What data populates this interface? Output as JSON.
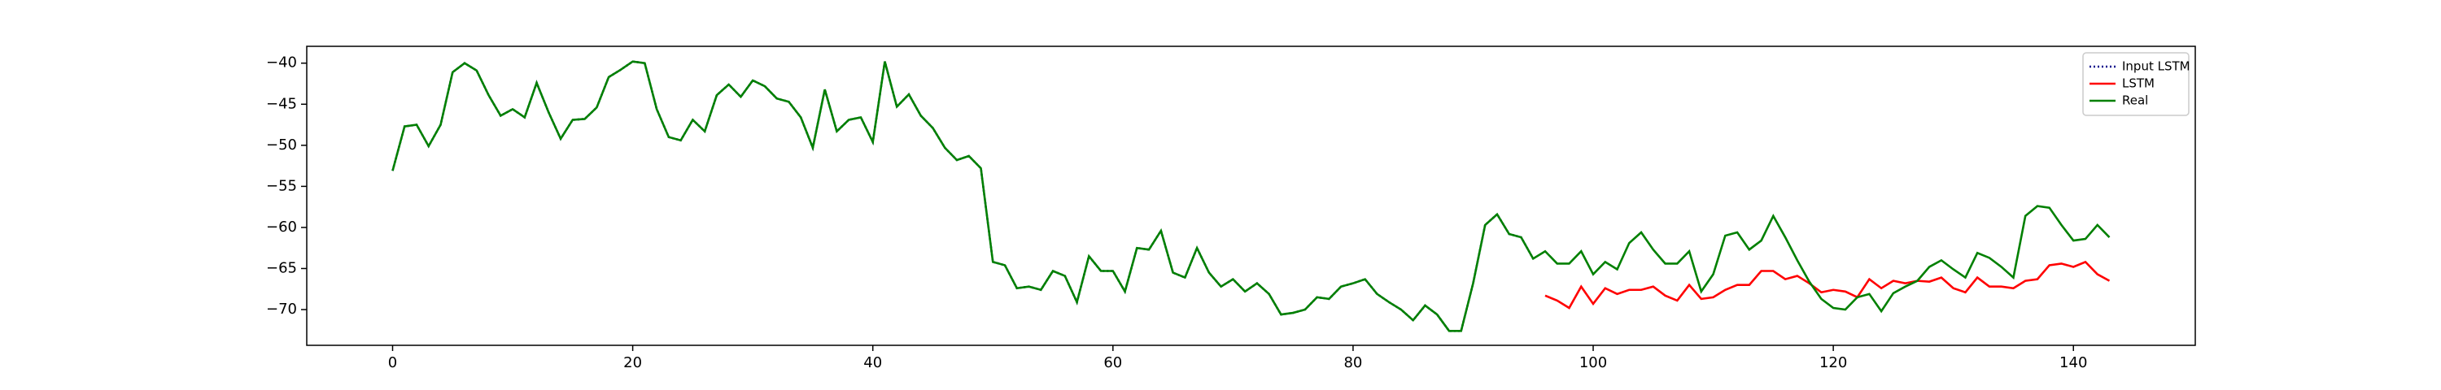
{
  "chart_data": {
    "type": "line",
    "legend": "upper right",
    "xlim": [
      -7.15,
      150.15
    ],
    "ylim": [
      -74.35,
      -37.95
    ],
    "xticks": [
      0,
      20,
      40,
      60,
      80,
      100,
      120,
      140
    ],
    "yticks": [
      {
        "value": -70,
        "label": "−70"
      },
      {
        "value": -65,
        "label": "−65"
      },
      {
        "value": -60,
        "label": "−60"
      },
      {
        "value": -55,
        "label": "−55"
      },
      {
        "value": -50,
        "label": "−50"
      },
      {
        "value": -45,
        "label": "−45"
      },
      {
        "value": -40,
        "label": "−40"
      }
    ],
    "series": [
      {
        "name": "Input LSTM",
        "color": "#00008b",
        "dash": "dotted",
        "x": [
          0,
          1,
          2,
          3,
          4,
          5,
          6,
          7,
          8,
          9,
          10,
          11,
          12,
          13,
          14,
          15,
          16,
          17,
          18,
          19,
          20,
          21,
          22,
          23,
          24,
          25,
          26,
          27,
          28,
          29,
          30,
          31,
          32,
          33,
          34,
          35,
          36,
          37,
          38,
          39,
          40,
          41,
          42,
          43,
          44,
          45,
          46,
          47,
          48,
          49,
          50,
          51,
          52,
          53,
          54,
          55,
          56,
          57,
          58,
          59,
          60,
          61,
          62,
          63,
          64,
          65,
          66,
          67,
          68,
          69,
          70,
          71,
          72,
          73,
          74,
          75,
          76,
          77,
          78,
          79,
          80,
          81,
          82,
          83,
          84,
          85,
          86,
          87,
          88,
          89,
          90,
          91,
          92,
          93,
          94,
          95
        ],
        "values": [
          -53.1,
          -47.7,
          -47.5,
          -50.1,
          -47.5,
          -41.1,
          -40,
          -40.9,
          -43.9,
          -46.4,
          -45.6,
          -46.6,
          -42.4,
          -46,
          -49.2,
          -46.9,
          -46.8,
          -45.4,
          -41.7,
          -40.8,
          -39.8,
          -40,
          -45.6,
          -49,
          -49.4,
          -46.9,
          -48.3,
          -43.9,
          -42.6,
          -44.1,
          -42.1,
          -42.8,
          -44.3,
          -44.7,
          -46.6,
          -50.3,
          -43.2,
          -48.3,
          -46.9,
          -46.6,
          -49.6,
          -39.8,
          -45.3,
          -43.8,
          -46.4,
          -47.9,
          -50.3,
          -51.8,
          -51.3,
          -52.8,
          -64.2,
          -64.6,
          -67.4,
          -67.2,
          -67.6,
          -65.3,
          -65.9,
          -69.1,
          -63.5,
          -65.3,
          -65.3,
          -67.8,
          -62.5,
          -62.7,
          -60.4,
          -65.5,
          -66.1,
          -62.5,
          -65.5,
          -67.2,
          -66.3,
          -67.8,
          -66.8,
          -68.1,
          -70.6,
          -70.4,
          -70,
          -68.5,
          -68.7,
          -67.2,
          -66.8,
          -66.3,
          -68.1,
          -69.1,
          -70,
          -71.3,
          -69.5,
          -70.6,
          -72.6,
          -72.6,
          -66.8,
          -59.7,
          -58.4,
          -60.8,
          -61.2,
          -63.8
        ]
      },
      {
        "name": "LSTM",
        "color": "#ff0000",
        "dash": "solid",
        "x": [
          96,
          97,
          98,
          99,
          100,
          101,
          102,
          103,
          104,
          105,
          106,
          107,
          108,
          109,
          110,
          111,
          112,
          113,
          114,
          115,
          116,
          117,
          118,
          119,
          120,
          121,
          122,
          123,
          124,
          125,
          126,
          127,
          128,
          129,
          130,
          131,
          132,
          133,
          134,
          135,
          136,
          137,
          138,
          139,
          140,
          141,
          142,
          143
        ],
        "values": [
          -68.3,
          -68.9,
          -69.8,
          -67.2,
          -69.3,
          -67.4,
          -68.1,
          -67.6,
          -67.6,
          -67.2,
          -68.3,
          -68.9,
          -67,
          -68.7,
          -68.5,
          -67.6,
          -67,
          -67,
          -65.3,
          -65.3,
          -66.3,
          -65.9,
          -66.8,
          -67.9,
          -67.6,
          -67.8,
          -68.5,
          -66.3,
          -67.4,
          -66.5,
          -66.8,
          -66.5,
          -66.6,
          -66.1,
          -67.4,
          -67.9,
          -66.1,
          -67.2,
          -67.2,
          -67.4,
          -66.5,
          -66.3,
          -64.6,
          -64.4,
          -64.8,
          -64.2,
          -65.7,
          -66.5
        ]
      },
      {
        "name": "Real",
        "color": "#008000",
        "dash": "solid",
        "x": [
          0,
          1,
          2,
          3,
          4,
          5,
          6,
          7,
          8,
          9,
          10,
          11,
          12,
          13,
          14,
          15,
          16,
          17,
          18,
          19,
          20,
          21,
          22,
          23,
          24,
          25,
          26,
          27,
          28,
          29,
          30,
          31,
          32,
          33,
          34,
          35,
          36,
          37,
          38,
          39,
          40,
          41,
          42,
          43,
          44,
          45,
          46,
          47,
          48,
          49,
          50,
          51,
          52,
          53,
          54,
          55,
          56,
          57,
          58,
          59,
          60,
          61,
          62,
          63,
          64,
          65,
          66,
          67,
          68,
          69,
          70,
          71,
          72,
          73,
          74,
          75,
          76,
          77,
          78,
          79,
          80,
          81,
          82,
          83,
          84,
          85,
          86,
          87,
          88,
          89,
          90,
          91,
          92,
          93,
          94,
          95,
          96,
          97,
          98,
          99,
          100,
          101,
          102,
          103,
          104,
          105,
          106,
          107,
          108,
          109,
          110,
          111,
          112,
          113,
          114,
          115,
          116,
          117,
          118,
          119,
          120,
          121,
          122,
          123,
          124,
          125,
          126,
          127,
          128,
          129,
          130,
          131,
          132,
          133,
          134,
          135,
          136,
          137,
          138,
          139,
          140,
          141,
          142,
          143
        ],
        "values": [
          -53.1,
          -47.7,
          -47.5,
          -50.1,
          -47.5,
          -41.1,
          -40,
          -40.9,
          -43.9,
          -46.4,
          -45.6,
          -46.6,
          -42.4,
          -46,
          -49.2,
          -46.9,
          -46.8,
          -45.4,
          -41.7,
          -40.8,
          -39.8,
          -40,
          -45.6,
          -49,
          -49.4,
          -46.9,
          -48.3,
          -43.9,
          -42.6,
          -44.1,
          -42.1,
          -42.8,
          -44.3,
          -44.7,
          -46.6,
          -50.3,
          -43.2,
          -48.3,
          -46.9,
          -46.6,
          -49.6,
          -39.8,
          -45.3,
          -43.8,
          -46.4,
          -47.9,
          -50.3,
          -51.8,
          -51.3,
          -52.8,
          -64.2,
          -64.6,
          -67.4,
          -67.2,
          -67.6,
          -65.3,
          -65.9,
          -69.1,
          -63.5,
          -65.3,
          -65.3,
          -67.8,
          -62.5,
          -62.7,
          -60.4,
          -65.5,
          -66.1,
          -62.5,
          -65.5,
          -67.2,
          -66.3,
          -67.8,
          -66.8,
          -68.1,
          -70.6,
          -70.4,
          -70,
          -68.5,
          -68.7,
          -67.2,
          -66.8,
          -66.3,
          -68.1,
          -69.1,
          -70,
          -71.3,
          -69.5,
          -70.6,
          -72.6,
          -72.6,
          -66.8,
          -59.7,
          -58.4,
          -60.8,
          -61.2,
          -63.8,
          -62.9,
          -64.4,
          -64.4,
          -62.9,
          -65.7,
          -64.2,
          -65.1,
          -61.9,
          -60.6,
          -62.7,
          -64.4,
          -64.4,
          -62.9,
          -67.8,
          -65.7,
          -61,
          -60.6,
          -62.7,
          -61.6,
          -58.6,
          -61.2,
          -64,
          -66.6,
          -68.7,
          -69.8,
          -70,
          -68.5,
          -68.1,
          -70.2,
          -68,
          -67.2,
          -66.5,
          -64.8,
          -64,
          -65.1,
          -66.1,
          -63.1,
          -63.7,
          -64.8,
          -66.1,
          -58.6,
          -57.4,
          -57.6,
          -59.7,
          -61.6,
          -61.4,
          -59.7,
          -61.2
        ]
      }
    ]
  }
}
